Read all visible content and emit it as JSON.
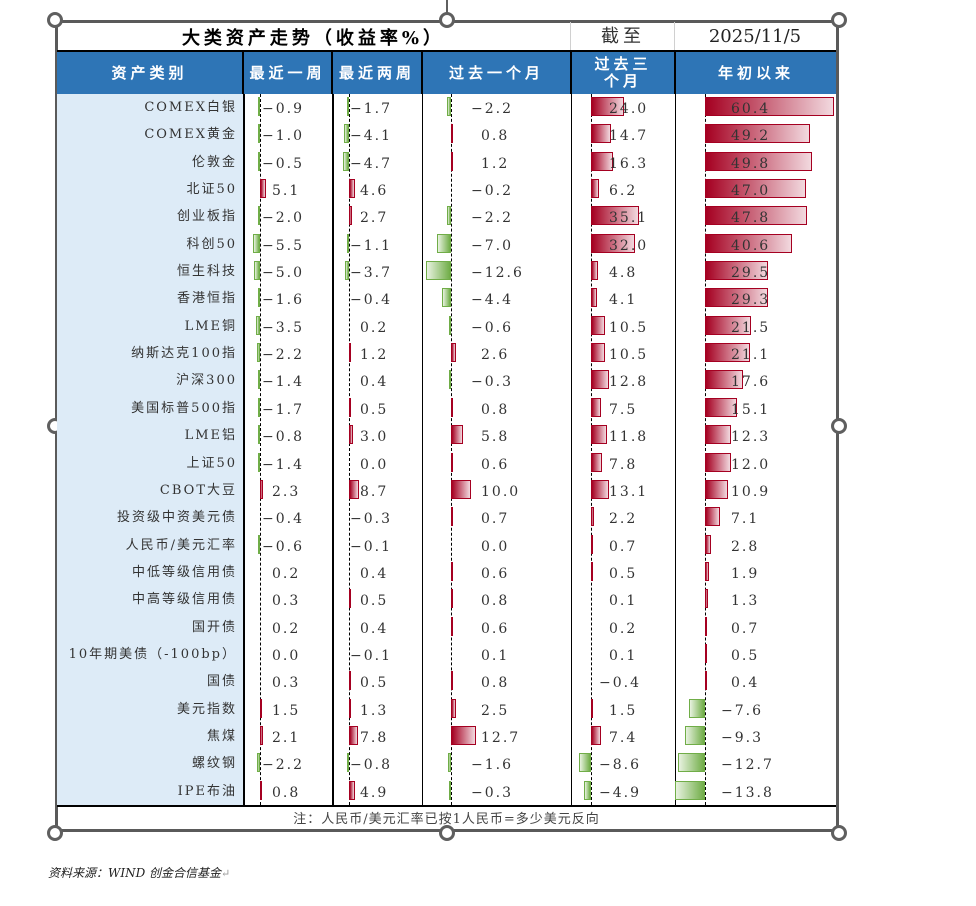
{
  "title": "大类资产走势（收益率%）",
  "as_of_label": "截至",
  "as_of_date": "2025/11/5",
  "headers": [
    "资产类别",
    "最近一周",
    "最近两周",
    "过去一个月",
    "过去三个月",
    "年初以来"
  ],
  "note": "注：人民币/美元汇率已按1人民币=多少美元反向",
  "source": "资料来源：WIND 创金合信基金",
  "colors": {
    "header_bg": "#2e75b6",
    "name_bg": "#ddebf7",
    "positive": "#a50021",
    "negative": "#70ad47"
  },
  "chart_data": {
    "type": "table",
    "title": "大类资产走势（收益率%）",
    "columns": [
      "最近一周",
      "最近两周",
      "过去一个月",
      "过去三个月",
      "年初以来"
    ],
    "rows": [
      {
        "name": "COMEX白银",
        "values": [
          -0.9,
          -1.7,
          -2.2,
          24.0,
          60.4
        ]
      },
      {
        "name": "COMEX黄金",
        "values": [
          -1.0,
          -4.1,
          0.8,
          14.7,
          49.2
        ]
      },
      {
        "name": "伦敦金",
        "values": [
          -0.5,
          -4.7,
          1.2,
          16.3,
          49.8
        ]
      },
      {
        "name": "北证50",
        "values": [
          5.1,
          4.6,
          -0.2,
          6.2,
          47.0
        ]
      },
      {
        "name": "创业板指",
        "values": [
          -2.0,
          2.7,
          -2.2,
          35.1,
          47.8
        ]
      },
      {
        "name": "科创50",
        "values": [
          -5.5,
          -1.1,
          -7.0,
          32.0,
          40.6
        ]
      },
      {
        "name": "恒生科技",
        "values": [
          -5.0,
          -3.7,
          -12.6,
          4.8,
          29.5
        ]
      },
      {
        "name": "香港恒指",
        "values": [
          -1.6,
          -0.4,
          -4.4,
          4.1,
          29.3
        ]
      },
      {
        "name": "LME铜",
        "values": [
          -3.5,
          0.2,
          -0.6,
          10.5,
          21.5
        ]
      },
      {
        "name": "纳斯达克100指",
        "values": [
          -2.2,
          1.2,
          2.6,
          10.5,
          21.1
        ]
      },
      {
        "name": "沪深300",
        "values": [
          -1.4,
          0.4,
          -0.3,
          12.8,
          17.6
        ]
      },
      {
        "name": "美国标普500指",
        "values": [
          -1.7,
          0.5,
          0.8,
          7.5,
          15.1
        ]
      },
      {
        "name": "LME铝",
        "values": [
          -0.8,
          3.0,
          5.8,
          11.8,
          12.3
        ]
      },
      {
        "name": "上证50",
        "values": [
          -1.4,
          0.0,
          0.6,
          7.8,
          12.0
        ]
      },
      {
        "name": "CBOT大豆",
        "values": [
          2.3,
          8.7,
          10.0,
          13.1,
          10.9
        ]
      },
      {
        "name": "投资级中资美元债",
        "values": [
          -0.4,
          -0.3,
          0.7,
          2.2,
          7.1
        ]
      },
      {
        "name": "人民币/美元汇率",
        "values": [
          -0.6,
          -0.1,
          0.0,
          0.7,
          2.8
        ]
      },
      {
        "name": "中低等级信用债",
        "values": [
          0.2,
          0.4,
          0.6,
          0.5,
          1.9
        ]
      },
      {
        "name": "中高等级信用债",
        "values": [
          0.3,
          0.5,
          0.8,
          0.1,
          1.3
        ]
      },
      {
        "name": "国开债",
        "values": [
          0.2,
          0.4,
          0.6,
          0.2,
          0.7
        ]
      },
      {
        "name": "10年期美债（-100bp）",
        "values": [
          0.0,
          -0.1,
          0.1,
          0.1,
          0.5
        ]
      },
      {
        "name": "国债",
        "values": [
          0.3,
          0.5,
          0.8,
          -0.4,
          0.4
        ]
      },
      {
        "name": "美元指数",
        "values": [
          1.5,
          1.3,
          2.5,
          1.5,
          -7.6
        ]
      },
      {
        "name": "焦煤",
        "values": [
          2.1,
          7.8,
          12.7,
          7.4,
          -9.3
        ]
      },
      {
        "name": "螺纹钢",
        "values": [
          -2.2,
          -0.8,
          -1.6,
          -8.6,
          -12.7
        ]
      },
      {
        "name": "IPE布油",
        "values": [
          0.8,
          4.9,
          -0.3,
          -4.9,
          -13.8
        ]
      }
    ]
  }
}
